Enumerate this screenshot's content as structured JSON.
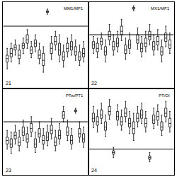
{
  "chart_data": [
    {
      "type": "box",
      "title": "MM1/MF1",
      "panel": "21",
      "tick_labels": false,
      "xlim": [
        0,
        21
      ],
      "ylim": [
        0,
        1
      ],
      "yticks": [],
      "reference_line": 0.72,
      "x": [
        1,
        2,
        3,
        4,
        5,
        6,
        7,
        8,
        9,
        10,
        11,
        12,
        13,
        14,
        15,
        16,
        17,
        18,
        19,
        20
      ],
      "lower": [
        0.22,
        0.3,
        0.38,
        0.28,
        0.4,
        0.46,
        0.35,
        0.42,
        0.28,
        0.18,
        0.86,
        0.33,
        0.44,
        0.3,
        0.24,
        0.36,
        0.38,
        0.32,
        0.26,
        0.3
      ],
      "q1": [
        0.3,
        0.36,
        0.44,
        0.34,
        0.46,
        0.52,
        0.4,
        0.48,
        0.34,
        0.26,
        0.88,
        0.4,
        0.5,
        0.38,
        0.32,
        0.42,
        0.44,
        0.38,
        0.32,
        0.36
      ],
      "median": [
        0.34,
        0.4,
        0.47,
        0.38,
        0.49,
        0.56,
        0.44,
        0.52,
        0.38,
        0.32,
        0.89,
        0.46,
        0.54,
        0.44,
        0.36,
        0.46,
        0.48,
        0.42,
        0.36,
        0.4
      ],
      "q3": [
        0.38,
        0.46,
        0.5,
        0.44,
        0.52,
        0.62,
        0.48,
        0.56,
        0.44,
        0.4,
        0.9,
        0.52,
        0.6,
        0.52,
        0.42,
        0.52,
        0.54,
        0.48,
        0.42,
        0.46
      ],
      "upper": [
        0.46,
        0.52,
        0.56,
        0.5,
        0.58,
        0.68,
        0.54,
        0.62,
        0.52,
        0.48,
        0.92,
        0.6,
        0.66,
        0.62,
        0.5,
        0.58,
        0.62,
        0.56,
        0.5,
        0.54
      ]
    },
    {
      "type": "box",
      "title": "MX1/MF1",
      "panel": "22",
      "tick_labels": false,
      "xlim": [
        0,
        21
      ],
      "ylim": [
        0,
        1
      ],
      "yticks": [],
      "reference_line": 0.62,
      "x": [
        1,
        2,
        3,
        4,
        5,
        6,
        7,
        8,
        9,
        10,
        11,
        12,
        13,
        14,
        15,
        16,
        17,
        18,
        19,
        20
      ],
      "lower": [
        0.4,
        0.35,
        0.45,
        0.3,
        0.5,
        0.38,
        0.42,
        0.55,
        0.33,
        0.4,
        0.9,
        0.45,
        0.36,
        0.42,
        0.5,
        0.38,
        0.44,
        0.3,
        0.48,
        0.4
      ],
      "q1": [
        0.46,
        0.42,
        0.5,
        0.38,
        0.56,
        0.44,
        0.48,
        0.62,
        0.4,
        0.46,
        0.92,
        0.52,
        0.42,
        0.48,
        0.56,
        0.44,
        0.5,
        0.38,
        0.54,
        0.46
      ],
      "median": [
        0.5,
        0.46,
        0.54,
        0.42,
        0.6,
        0.48,
        0.52,
        0.66,
        0.44,
        0.5,
        0.93,
        0.56,
        0.46,
        0.52,
        0.6,
        0.48,
        0.54,
        0.42,
        0.58,
        0.5
      ],
      "q3": [
        0.54,
        0.52,
        0.58,
        0.48,
        0.66,
        0.54,
        0.58,
        0.72,
        0.5,
        0.56,
        0.94,
        0.62,
        0.52,
        0.58,
        0.66,
        0.54,
        0.6,
        0.48,
        0.64,
        0.56
      ],
      "upper": [
        0.6,
        0.58,
        0.64,
        0.56,
        0.74,
        0.62,
        0.66,
        0.8,
        0.58,
        0.64,
        0.96,
        0.7,
        0.6,
        0.66,
        0.74,
        0.62,
        0.68,
        0.56,
        0.72,
        0.64
      ]
    },
    {
      "type": "box",
      "title": "PTw/PT1",
      "panel": "23",
      "tick_labels": false,
      "xlim": [
        0,
        21
      ],
      "ylim": [
        0,
        1
      ],
      "yticks": [],
      "reference_line": 0.62,
      "x": [
        1,
        2,
        3,
        4,
        5,
        6,
        7,
        8,
        9,
        10,
        11,
        12,
        13,
        14,
        15,
        16,
        17,
        18,
        19,
        20
      ],
      "lower": [
        0.3,
        0.25,
        0.36,
        0.28,
        0.4,
        0.32,
        0.45,
        0.26,
        0.38,
        0.3,
        0.34,
        0.42,
        0.28,
        0.36,
        0.62,
        0.4,
        0.3,
        0.72,
        0.38,
        0.32
      ],
      "q1": [
        0.36,
        0.32,
        0.42,
        0.34,
        0.46,
        0.38,
        0.5,
        0.32,
        0.44,
        0.36,
        0.4,
        0.48,
        0.34,
        0.42,
        0.66,
        0.46,
        0.36,
        0.74,
        0.44,
        0.38
      ],
      "median": [
        0.4,
        0.36,
        0.46,
        0.38,
        0.5,
        0.42,
        0.54,
        0.36,
        0.48,
        0.4,
        0.44,
        0.52,
        0.38,
        0.46,
        0.7,
        0.5,
        0.4,
        0.75,
        0.48,
        0.42
      ],
      "q3": [
        0.44,
        0.42,
        0.5,
        0.44,
        0.56,
        0.48,
        0.6,
        0.42,
        0.54,
        0.46,
        0.5,
        0.58,
        0.44,
        0.52,
        0.74,
        0.56,
        0.46,
        0.76,
        0.54,
        0.48
      ],
      "upper": [
        0.52,
        0.5,
        0.58,
        0.52,
        0.64,
        0.56,
        0.68,
        0.5,
        0.62,
        0.54,
        0.58,
        0.66,
        0.52,
        0.6,
        0.8,
        0.64,
        0.54,
        0.78,
        0.62,
        0.56
      ]
    },
    {
      "type": "box",
      "title": "PT/OI",
      "panel": "24",
      "tick_labels": false,
      "xlim": [
        0,
        21
      ],
      "ylim": [
        0,
        1
      ],
      "yticks": [],
      "reference_line": 0.3,
      "x": [
        1,
        2,
        3,
        4,
        5,
        6,
        7,
        8,
        9,
        10,
        11,
        12,
        13,
        14,
        15,
        16,
        17,
        18,
        19,
        20
      ],
      "lower": [
        0.55,
        0.5,
        0.6,
        0.45,
        0.65,
        0.2,
        0.58,
        0.52,
        0.62,
        0.48,
        0.4,
        0.56,
        0.6,
        0.5,
        0.15,
        0.54,
        0.58,
        0.46,
        0.62,
        0.5
      ],
      "q1": [
        0.62,
        0.58,
        0.66,
        0.52,
        0.7,
        0.24,
        0.64,
        0.58,
        0.68,
        0.56,
        0.48,
        0.62,
        0.66,
        0.56,
        0.18,
        0.6,
        0.64,
        0.52,
        0.68,
        0.56
      ],
      "median": [
        0.66,
        0.62,
        0.7,
        0.56,
        0.74,
        0.26,
        0.68,
        0.62,
        0.72,
        0.6,
        0.54,
        0.66,
        0.7,
        0.6,
        0.2,
        0.64,
        0.68,
        0.56,
        0.72,
        0.6
      ],
      "q3": [
        0.72,
        0.68,
        0.76,
        0.62,
        0.8,
        0.28,
        0.74,
        0.68,
        0.78,
        0.66,
        0.62,
        0.72,
        0.76,
        0.66,
        0.22,
        0.7,
        0.74,
        0.62,
        0.78,
        0.66
      ],
      "upper": [
        0.8,
        0.76,
        0.84,
        0.7,
        0.88,
        0.32,
        0.82,
        0.76,
        0.86,
        0.74,
        0.72,
        0.8,
        0.84,
        0.74,
        0.26,
        0.78,
        0.82,
        0.7,
        0.86,
        0.74
      ]
    }
  ]
}
